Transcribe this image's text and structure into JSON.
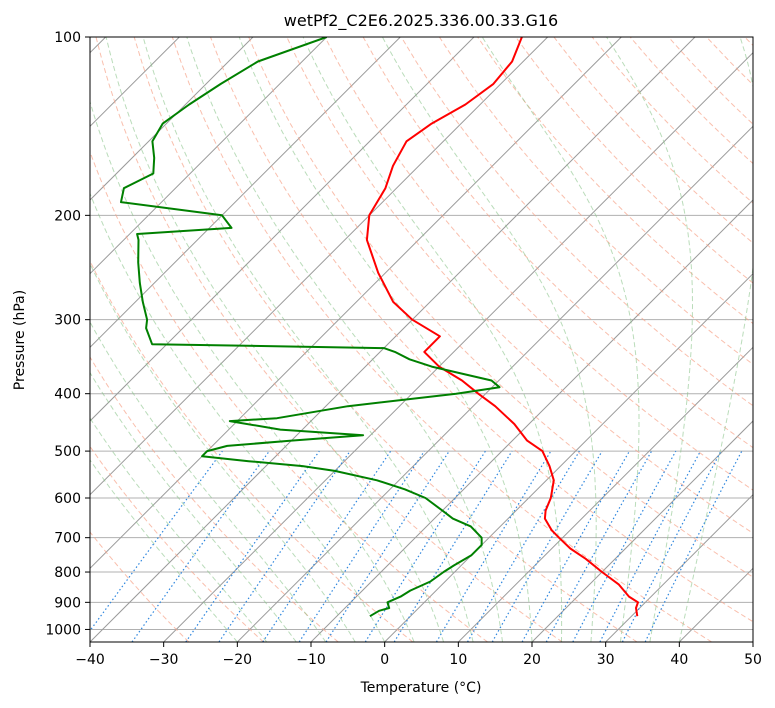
{
  "chart_data": {
    "type": "line",
    "subtype": "skew-t log-p",
    "title": "wetPf2_C2E6.2025.336.00.33.G16",
    "xlabel": "Temperature (°C)",
    "ylabel": "Pressure (hPa)",
    "xlim": [
      -40,
      50
    ],
    "ylim": [
      1050,
      100
    ],
    "y_scale": "log",
    "grid": true,
    "x_ticks": [
      -40,
      -30,
      -20,
      -10,
      0,
      10,
      20,
      30,
      40,
      50
    ],
    "y_ticks": [
      100,
      200,
      300,
      400,
      500,
      600,
      700,
      800,
      900,
      1000
    ],
    "series": [
      {
        "color": "#ff0000",
        "p": [
          100,
          110,
          120,
          130,
          140,
          150,
          165,
          180,
          200,
          220,
          250,
          280,
          300,
          320,
          340,
          360,
          380,
          400,
          420,
          450,
          480,
          500,
          530,
          560,
          600,
          630,
          650,
          680,
          700,
          730,
          760,
          800,
          840,
          880,
          900,
          920,
          950
        ],
        "t": [
          -63.5,
          -61.5,
          -61.0,
          -62.0,
          -64.0,
          -65.0,
          -63.5,
          -61.5,
          -60.0,
          -57.0,
          -51.0,
          -45.0,
          -40.0,
          -34.0,
          -34.0,
          -30.0,
          -25.0,
          -21.0,
          -17.0,
          -12.0,
          -8.0,
          -4.5,
          -1.5,
          1.0,
          3.0,
          4.0,
          5.0,
          7.5,
          9.5,
          12.5,
          16.0,
          20.0,
          24.0,
          27.0,
          29.0,
          29.5,
          30.8
        ]
      },
      {
        "color": "#008000",
        "p": [
          100,
          110,
          120,
          130,
          140,
          150,
          160,
          170,
          180,
          190,
          200,
          210,
          215,
          220,
          240,
          260,
          280,
          300,
          310,
          330,
          335,
          340,
          350,
          360,
          380,
          390,
          400,
          420,
          440,
          445,
          460,
          470,
          480,
          490,
          500,
          510,
          520,
          530,
          540,
          560,
          580,
          600,
          630,
          650,
          670,
          700,
          720,
          750,
          780,
          800,
          830,
          860,
          880,
          900,
          910,
          920,
          930,
          950
        ],
        "t": [
          -90.0,
          -96.0,
          -98.0,
          -99.5,
          -100.5,
          -99.5,
          -97.0,
          -95.0,
          -97.0,
          -95.5,
          -80.0,
          -77.0,
          -89.0,
          -88.0,
          -85.0,
          -82.0,
          -79.0,
          -76.0,
          -75.0,
          -72.0,
          -40.0,
          -38.0,
          -35.0,
          -31.0,
          -21.0,
          -19.0,
          -24.0,
          -37.0,
          -45.0,
          -51.0,
          -43.0,
          -31.0,
          -40.0,
          -48.0,
          -50.0,
          -50.0,
          -43.0,
          -35.0,
          -30.0,
          -23.0,
          -18.0,
          -14.0,
          -10.0,
          -7.5,
          -4.0,
          -1.0,
          0.0,
          0.0,
          -1.0,
          -1.5,
          -2.0,
          -3.5,
          -4.0,
          -5.0,
          -4.5,
          -4.0,
          -5.0,
          -5.5
        ]
      }
    ]
  }
}
